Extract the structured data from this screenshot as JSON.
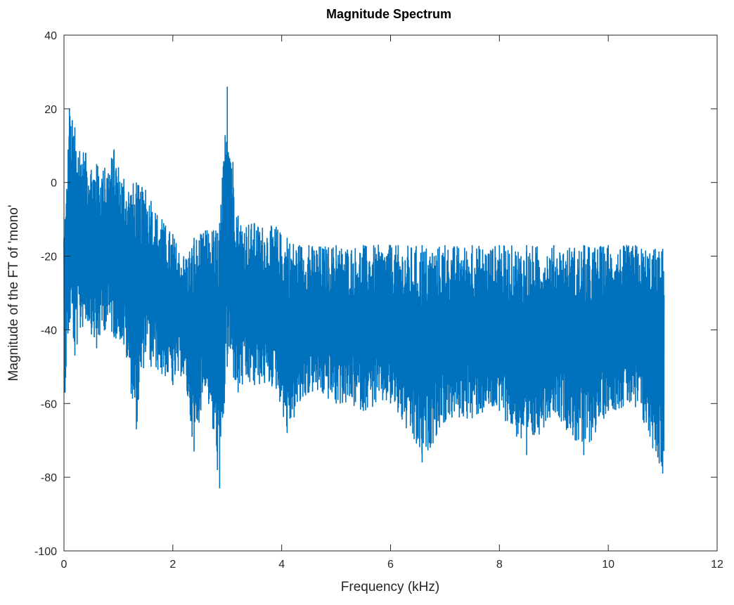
{
  "chart_data": {
    "type": "line",
    "title": "Magnitude Spectrum",
    "xlabel": "Frequency (kHz)",
    "ylabel": "Magnitude of the FT of 'mono'",
    "xlim": [
      0,
      12
    ],
    "ylim": [
      -100,
      40
    ],
    "xticks": [
      0,
      2,
      4,
      6,
      8,
      10,
      12
    ],
    "yticks": [
      -100,
      -80,
      -60,
      -40,
      -20,
      0,
      20,
      40
    ],
    "grid": false,
    "legend": "none",
    "line_color": "#0072BD",
    "series": [
      {
        "x_range_khz": [
          0,
          11.025
        ],
        "y_approx": [
          {
            "x": 0.02,
            "y_min": -57,
            "y_max": -10
          },
          {
            "x": 0.1,
            "y_min": -38,
            "y_max": 20
          },
          {
            "x": 0.2,
            "y_min": -47,
            "y_max": 15
          },
          {
            "x": 0.4,
            "y_min": -37,
            "y_max": 8
          },
          {
            "x": 0.6,
            "y_min": -45,
            "y_max": 5
          },
          {
            "x": 0.75,
            "y_min": -40,
            "y_max": 4
          },
          {
            "x": 0.92,
            "y_min": -42,
            "y_max": 9
          },
          {
            "x": 1.1,
            "y_min": -44,
            "y_max": 1
          },
          {
            "x": 1.33,
            "y_min": -67,
            "y_max": 0
          },
          {
            "x": 1.5,
            "y_min": -46,
            "y_max": -2
          },
          {
            "x": 1.6,
            "y_min": -50,
            "y_max": -5
          },
          {
            "x": 1.8,
            "y_min": -52,
            "y_max": -10
          },
          {
            "x": 2.0,
            "y_min": -55,
            "y_max": -14
          },
          {
            "x": 2.2,
            "y_min": -52,
            "y_max": -20
          },
          {
            "x": 2.39,
            "y_min": -73,
            "y_max": -15
          },
          {
            "x": 2.6,
            "y_min": -55,
            "y_max": -13
          },
          {
            "x": 2.86,
            "y_min": -83,
            "y_max": -11
          },
          {
            "x": 3.0,
            "y_min": -50,
            "y_max": 26
          },
          {
            "x": 3.2,
            "y_min": -57,
            "y_max": -9
          },
          {
            "x": 3.5,
            "y_min": -55,
            "y_max": -11
          },
          {
            "x": 3.9,
            "y_min": -56,
            "y_max": -12
          },
          {
            "x": 4.1,
            "y_min": -68,
            "y_max": -15
          },
          {
            "x": 4.5,
            "y_min": -57,
            "y_max": -17
          },
          {
            "x": 5.0,
            "y_min": -60,
            "y_max": -17
          },
          {
            "x": 5.5,
            "y_min": -62,
            "y_max": -17
          },
          {
            "x": 6.0,
            "y_min": -60,
            "y_max": -17
          },
          {
            "x": 6.58,
            "y_min": -76,
            "y_max": -17
          },
          {
            "x": 7.0,
            "y_min": -65,
            "y_max": -17
          },
          {
            "x": 7.5,
            "y_min": -64,
            "y_max": -17
          },
          {
            "x": 8.0,
            "y_min": -62,
            "y_max": -17
          },
          {
            "x": 8.5,
            "y_min": -74,
            "y_max": -17
          },
          {
            "x": 9.0,
            "y_min": -62,
            "y_max": -17
          },
          {
            "x": 9.55,
            "y_min": -74,
            "y_max": -17
          },
          {
            "x": 10.0,
            "y_min": -62,
            "y_max": -17
          },
          {
            "x": 10.5,
            "y_min": -61,
            "y_max": -17
          },
          {
            "x": 11.0,
            "y_min": -79,
            "y_max": -18
          }
        ]
      }
    ]
  }
}
